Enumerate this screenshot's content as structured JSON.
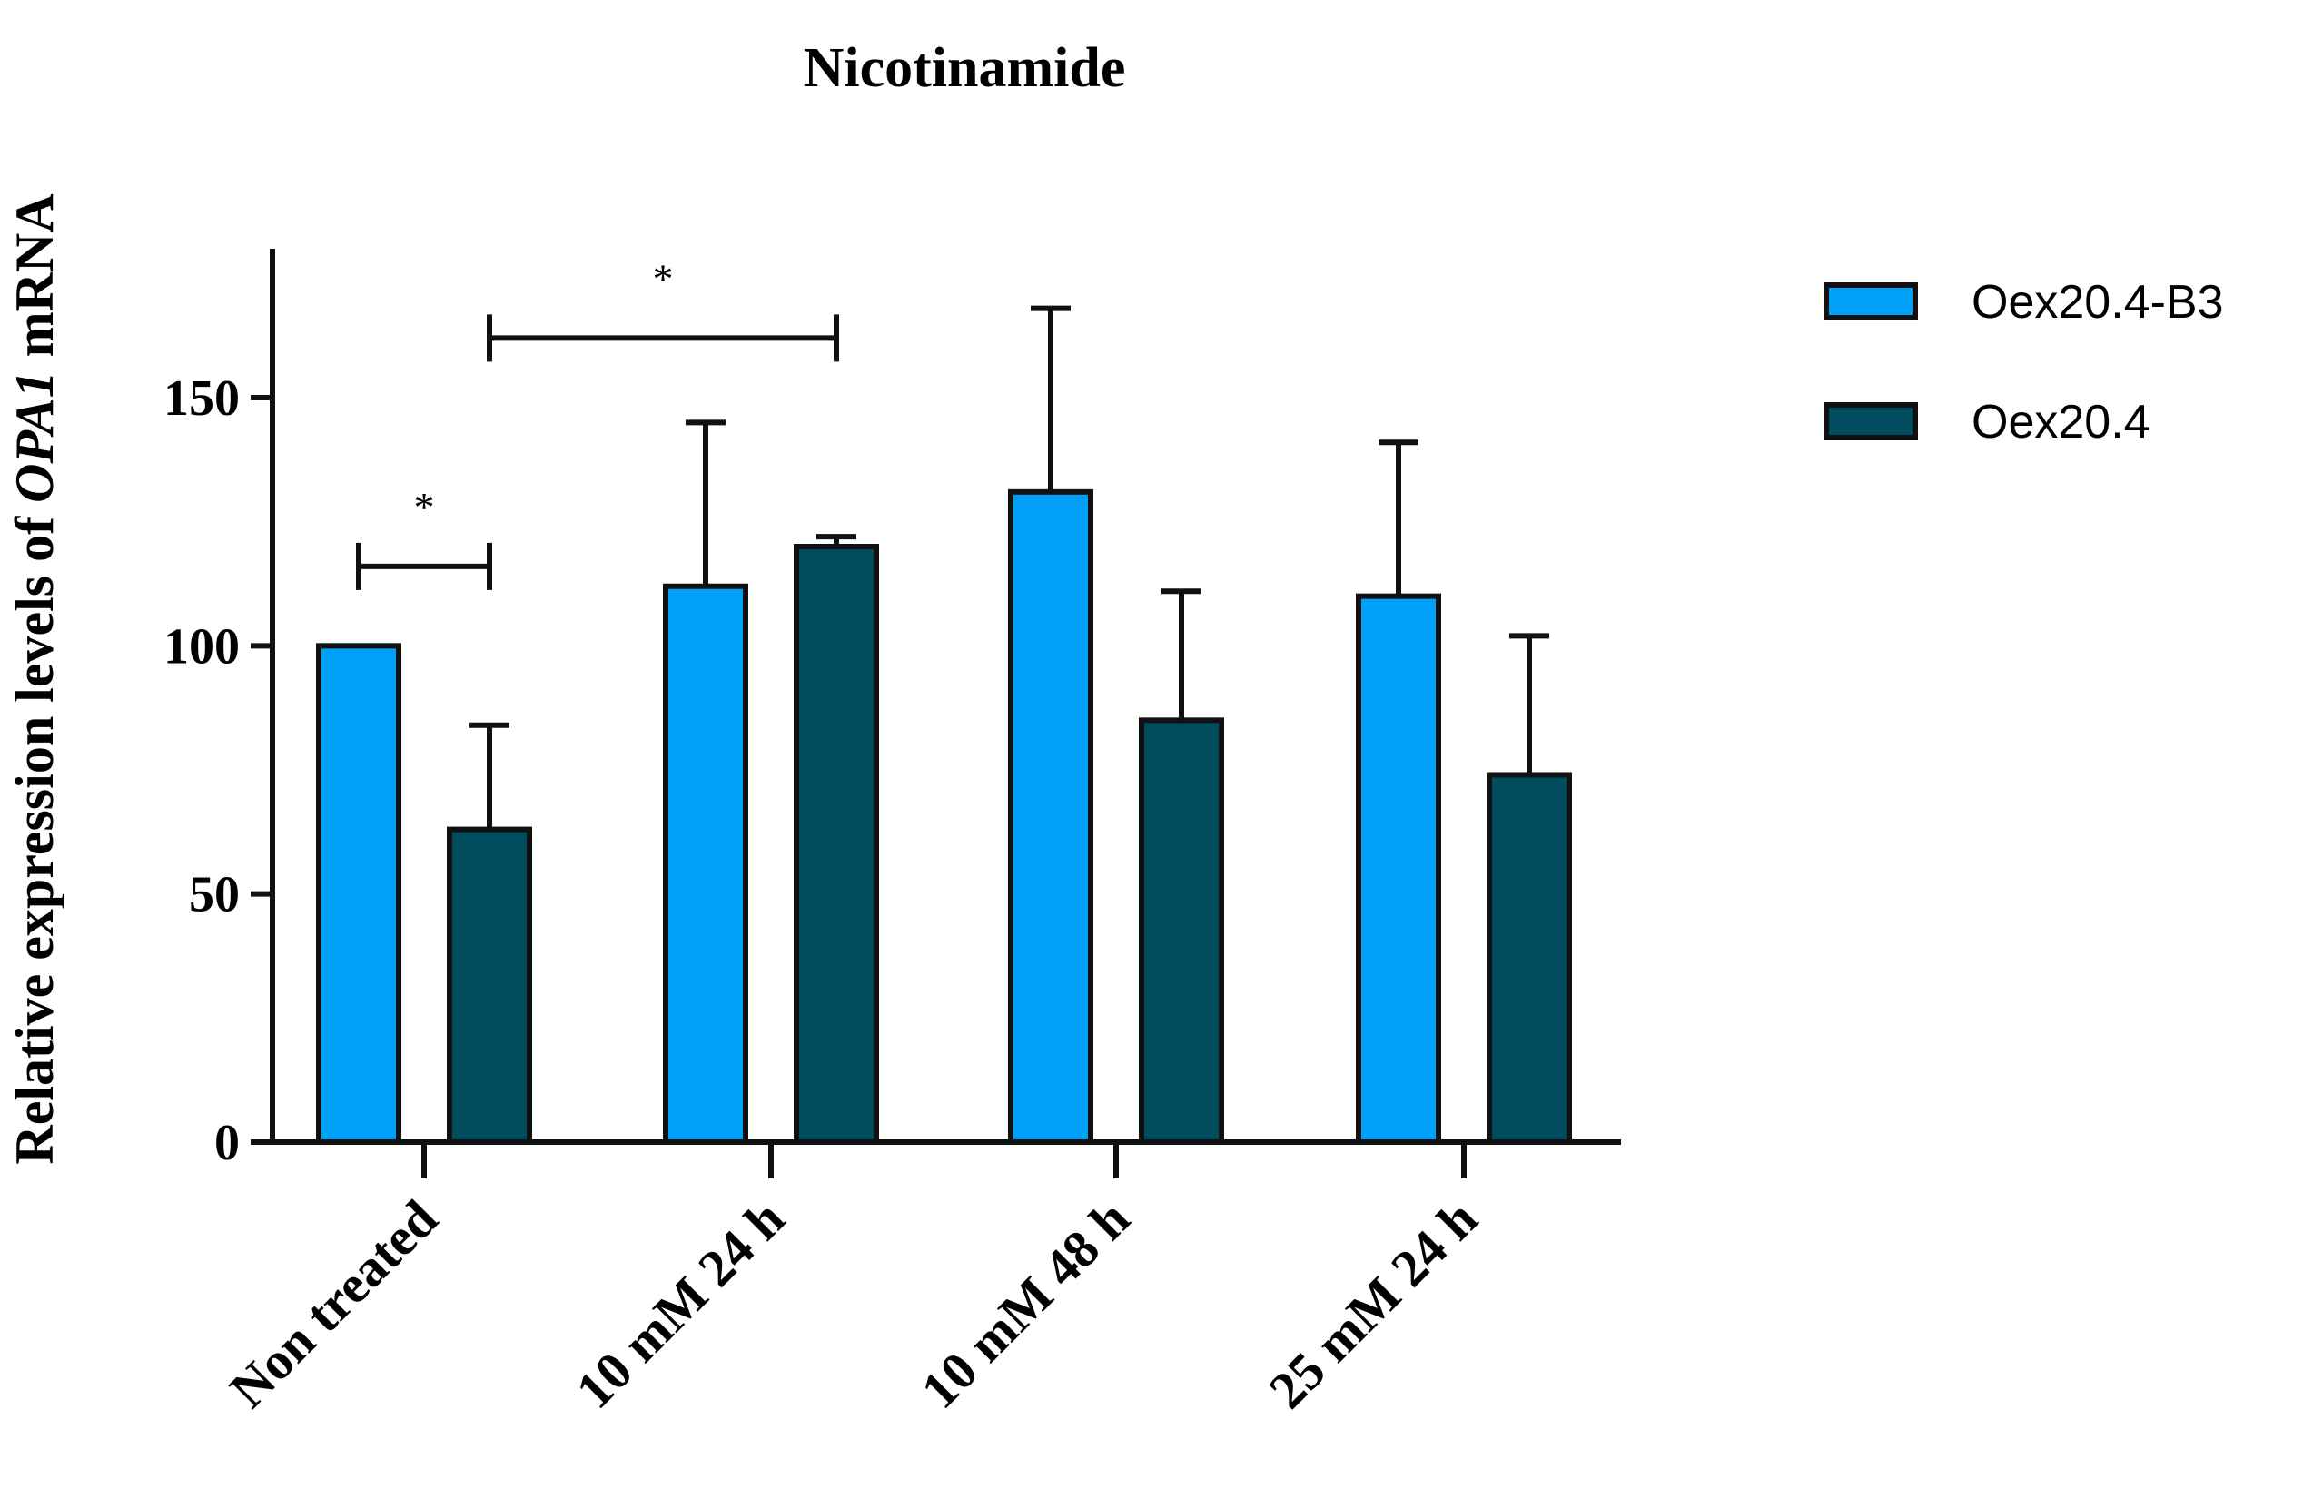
{
  "chart_data": {
    "type": "bar",
    "title": "Nicotinamide",
    "ylabel_prefix": "Relative expression levels of ",
    "ylabel_italic": "OPA1",
    "ylabel_suffix": " mRNA",
    "xlabel": "",
    "ylim": [
      0,
      180
    ],
    "yticks": [
      0,
      50,
      100,
      150
    ],
    "categories": [
      "Non treated",
      "10 mM 24 h",
      "10 mM 48 h",
      "25 mM 24 h"
    ],
    "series": [
      {
        "name": "Oex20.4-B3",
        "color": "#00a0f8",
        "values": [
          100,
          112,
          131,
          110
        ],
        "errors": [
          0,
          33,
          37,
          31
        ]
      },
      {
        "name": "Oex20.4",
        "color": "#004b5e",
        "values": [
          63,
          120,
          85,
          74
        ],
        "errors": [
          21,
          2,
          26,
          28
        ]
      }
    ],
    "significance": [
      {
        "from": [
          0,
          0
        ],
        "to": [
          0,
          1
        ],
        "label": "*",
        "y": 116
      },
      {
        "from": [
          0,
          1
        ],
        "to": [
          1,
          1
        ],
        "label": "*",
        "y": 162
      }
    ],
    "legend_position": "top-right"
  }
}
